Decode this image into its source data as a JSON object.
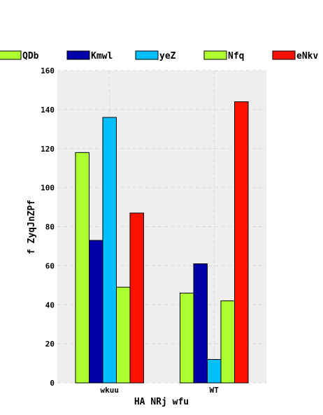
{
  "chart_data": {
    "type": "bar",
    "categories": [
      "wkuu",
      "WT"
    ],
    "series": [
      {
        "name": "QDb",
        "color": "#adff2f",
        "values": [
          118,
          46
        ]
      },
      {
        "name": "Kmwl",
        "color": "#0000aa",
        "values": [
          73,
          61
        ]
      },
      {
        "name": "yeZ",
        "color": "#00bfff",
        "values": [
          136,
          12
        ]
      },
      {
        "name": "Nfq",
        "color": "#adff2f",
        "values": [
          49,
          42
        ]
      },
      {
        "name": "eNkv",
        "color": "#ff1100",
        "values": [
          87,
          144
        ]
      }
    ],
    "xlabel": "HA  NRj  wfu",
    "ylabel": "f ZyqJnZPf",
    "ylim": [
      0,
      160
    ],
    "yticks": [
      0,
      20,
      40,
      60,
      80,
      100,
      120,
      140,
      160
    ],
    "grid": true,
    "legend_position": "top",
    "plot_background": "#eeeeee"
  }
}
